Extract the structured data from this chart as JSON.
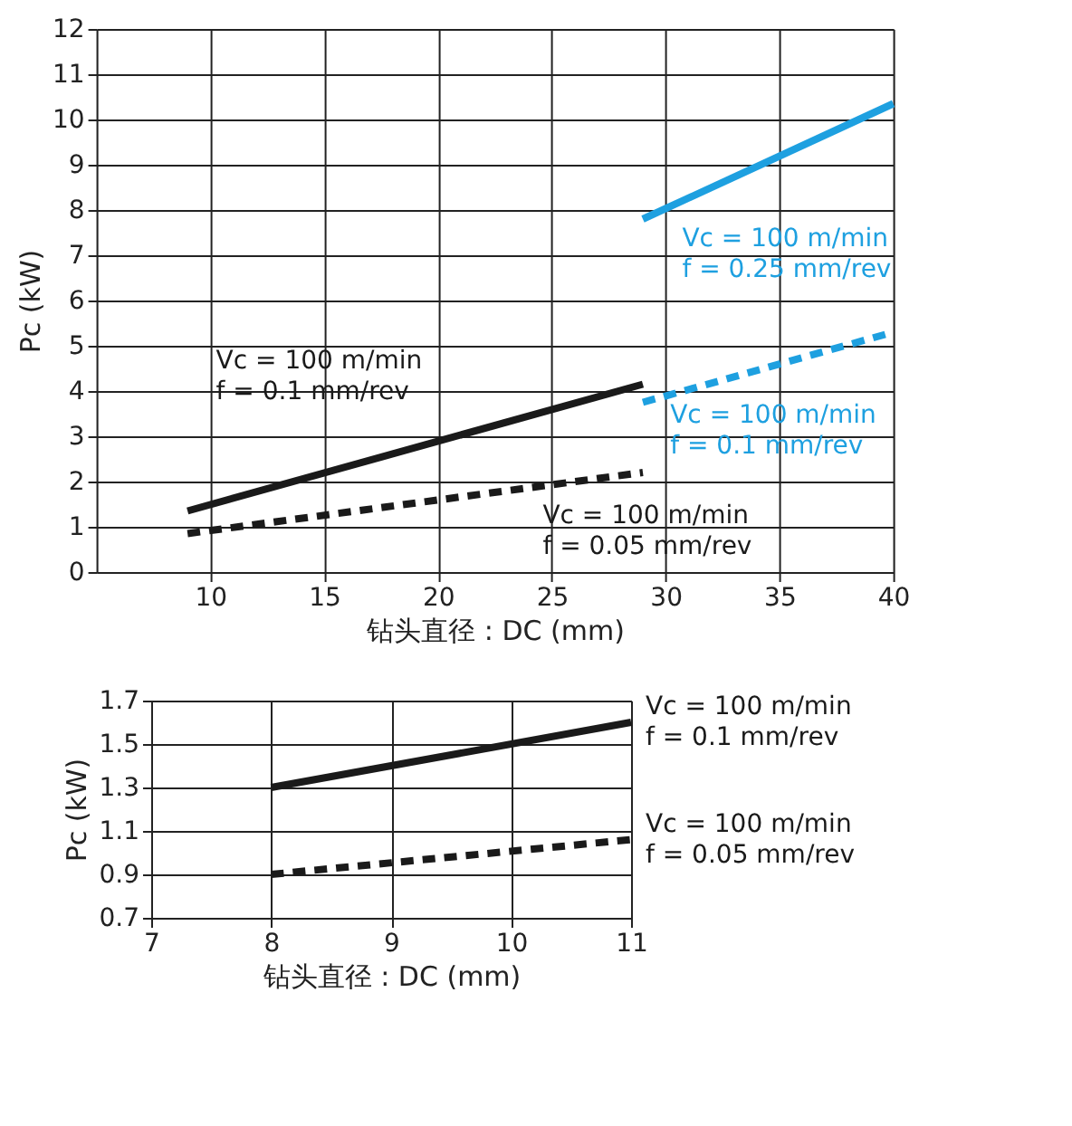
{
  "chart_data": [
    {
      "type": "line",
      "xlabel": "钻头直径 : DC (mm)",
      "ylabel": "Pc (kW)",
      "xlim": [
        5,
        40
      ],
      "xticks": [
        10,
        15,
        20,
        25,
        30,
        35,
        40
      ],
      "ylim": [
        0,
        12
      ],
      "yticks": [
        0,
        1,
        2,
        3,
        4,
        5,
        6,
        7,
        8,
        9,
        10,
        11,
        12
      ],
      "grid": true,
      "series": [
        {
          "name": "Vc = 100 m/min\nf = 0.1 mm/rev",
          "x": [
            9,
            29
          ],
          "values": [
            1.35,
            4.15
          ],
          "color": "#1a1a1a",
          "line_style": "solid"
        },
        {
          "name": "Vc = 100 m/min\nf = 0.05 mm/rev",
          "x": [
            9,
            29
          ],
          "values": [
            0.85,
            2.2
          ],
          "color": "#1a1a1a",
          "line_style": "dashed"
        },
        {
          "name": "Vc = 100 m/min\nf = 0.25 mm/rev",
          "x": [
            29,
            40
          ],
          "values": [
            7.8,
            10.35
          ],
          "color": "#1ea0e0",
          "line_style": "solid"
        },
        {
          "name": "Vc = 100 m/min\nf = 0.1 mm/rev",
          "x": [
            29,
            40
          ],
          "values": [
            3.75,
            5.3
          ],
          "color": "#1ea0e0",
          "line_style": "dashed"
        }
      ]
    },
    {
      "type": "line",
      "xlabel": "钻头直径 : DC (mm)",
      "ylabel": "Pc (kW)",
      "xlim": [
        7,
        11
      ],
      "xticks": [
        7,
        8,
        9,
        10,
        11
      ],
      "ylim": [
        0.7,
        1.7
      ],
      "yticks": [
        0.7,
        0.9,
        1.1,
        1.3,
        1.5,
        1.7
      ],
      "grid": true,
      "series": [
        {
          "name": "Vc = 100 m/min\nf = 0.1 mm/rev",
          "x": [
            8,
            11
          ],
          "values": [
            1.3,
            1.6
          ],
          "color": "#1a1a1a",
          "line_style": "solid"
        },
        {
          "name": "Vc = 100 m/min\nf = 0.05 mm/rev",
          "x": [
            8,
            11
          ],
          "values": [
            0.9,
            1.06
          ],
          "color": "#1a1a1a",
          "line_style": "dashed"
        }
      ]
    }
  ]
}
